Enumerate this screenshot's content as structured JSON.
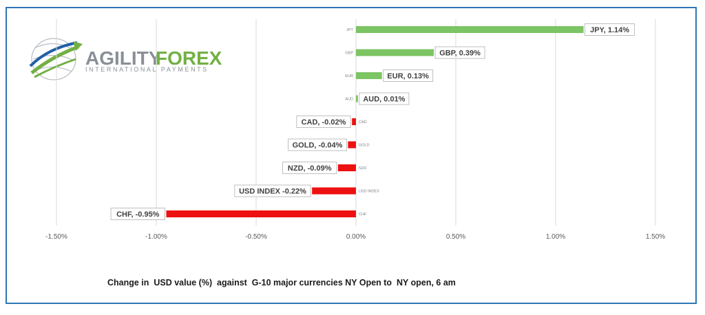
{
  "logo": {
    "text_a": "AGILITY",
    "text_b": "FOREX",
    "tagline": "INTERNATIONAL PAYMENTS",
    "colors": {
      "gray": "#8a8f96",
      "green": "#72b043",
      "blue": "#1f5fa8"
    }
  },
  "chart_data": {
    "type": "bar",
    "orientation": "horizontal",
    "categories": [
      "JPY",
      "GBP",
      "EUR",
      "AUD",
      "CAD",
      "GOLD",
      "NZD",
      "USD INDEX",
      "CHF"
    ],
    "values": [
      1.14,
      0.39,
      0.13,
      0.01,
      -0.02,
      -0.04,
      -0.09,
      -0.22,
      -0.95
    ],
    "data_labels": [
      "JPY, 1.14%",
      "GBP, 0.39%",
      "EUR, 0.13%",
      "AUD, 0.01%",
      "CAD, -0.02%",
      "GOLD, -0.04%",
      "NZD, -0.09%",
      "USD INDEX -0.22%",
      "CHF, -0.95%"
    ],
    "xlim": [
      -1.5,
      1.5
    ],
    "xticks": [
      -1.5,
      -1.0,
      -0.5,
      0,
      0.5,
      1.0,
      1.5
    ],
    "xtick_labels": [
      "-1.50%",
      "-1.00%",
      "-0.50%",
      "0.00%",
      "0.50%",
      "1.00%",
      "1.50%"
    ],
    "colors": {
      "positive": "#7cc464",
      "negative": "#ee1111"
    },
    "grid": true,
    "legend": "none",
    "caption": "Change in  USD value (%)  against  G-10 major currencies NY Open to  NY open, 6 am"
  }
}
